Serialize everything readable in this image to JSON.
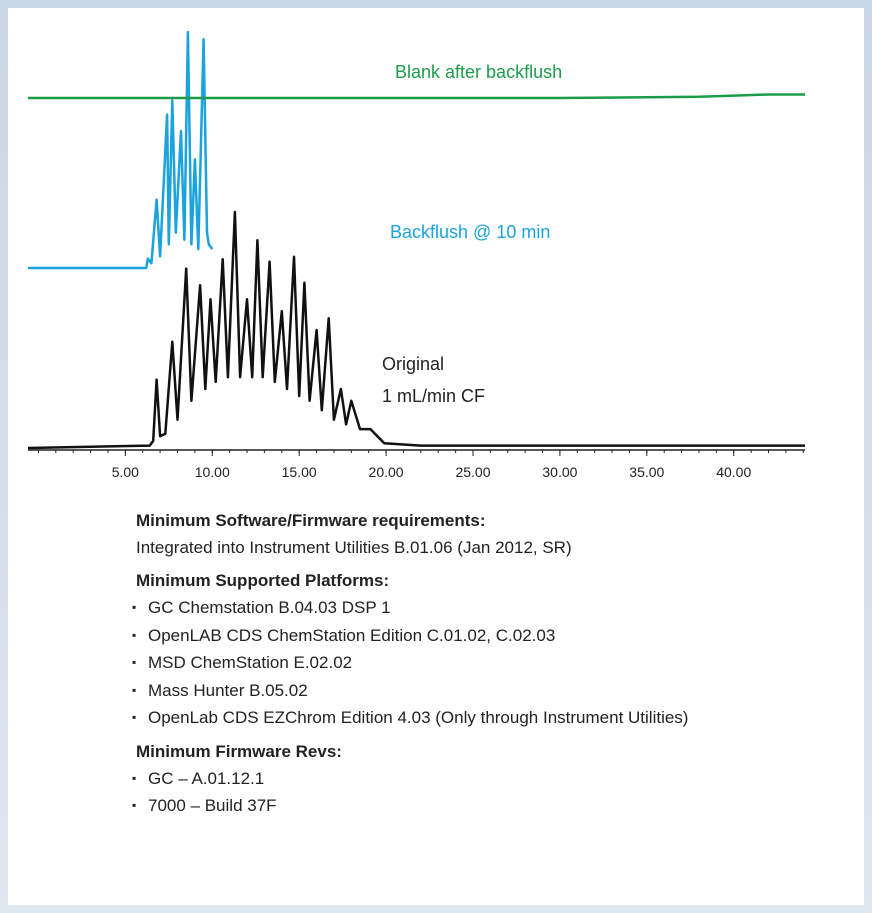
{
  "chart_data": {
    "type": "line",
    "xlim": [
      -0.6,
      44.1
    ],
    "xticks": [
      {
        "value": 5,
        "label": "5.00"
      },
      {
        "value": 10,
        "label": "10.00"
      },
      {
        "value": 15,
        "label": "15.00"
      },
      {
        "value": 20,
        "label": "20.00"
      },
      {
        "value": 25,
        "label": "25.00"
      },
      {
        "value": 30,
        "label": "30.00"
      },
      {
        "value": 35,
        "label": "35.00"
      },
      {
        "value": 40,
        "label": "40.00"
      }
    ],
    "xminorticks": [
      0,
      1,
      2,
      3,
      4,
      5,
      6,
      7,
      8,
      9,
      10,
      11,
      12,
      13,
      14,
      15,
      16,
      17,
      18,
      19,
      20,
      21,
      22,
      23,
      24,
      25,
      26,
      27,
      28,
      29,
      30,
      31,
      32,
      33,
      34,
      35,
      36,
      37,
      38,
      39,
      40,
      41,
      42,
      43,
      44
    ],
    "series": [
      {
        "name": "Blank after backflush",
        "color": "#1a9c4a",
        "x": [
          -0.6,
          10,
          20,
          30,
          38,
          40,
          42,
          44.1
        ],
        "values": [
          0,
          0,
          0,
          0,
          0.5,
          1,
          1.5,
          1.5
        ]
      },
      {
        "name": "Backflush @ 10 min",
        "color": "#1aa3dc",
        "x": [
          -0.6,
          6.2,
          6.3,
          6.5,
          6.8,
          7.0,
          7.4,
          7.5,
          7.7,
          7.9,
          8.2,
          8.4,
          8.6,
          8.8,
          9.0,
          9.2,
          9.5,
          9.7,
          9.8,
          10.0
        ],
        "values": [
          0,
          0,
          4,
          2,
          29,
          5,
          65,
          10,
          71,
          15,
          58,
          12,
          100,
          10,
          46,
          8,
          97,
          15,
          10,
          8
        ]
      },
      {
        "name": "Original",
        "name_line2": "1 mL/min CF",
        "color": "#111111",
        "x": [
          -0.6,
          6.4,
          6.6,
          6.8,
          7.0,
          7.3,
          7.7,
          8.0,
          8.5,
          8.8,
          9.3,
          9.6,
          9.9,
          10.2,
          10.6,
          10.9,
          11.3,
          11.6,
          12.0,
          12.3,
          12.6,
          12.9,
          13.3,
          13.6,
          14.0,
          14.3,
          14.7,
          15.0,
          15.3,
          15.6,
          16.0,
          16.3,
          16.7,
          17.0,
          17.4,
          17.7,
          18.0,
          18.5,
          19.1,
          19.9,
          22,
          30,
          44.1
        ],
        "values": [
          0,
          1,
          3,
          29,
          5,
          6,
          45,
          12,
          76,
          20,
          69,
          25,
          63,
          28,
          80,
          30,
          100,
          30,
          63,
          30,
          88,
          30,
          79,
          28,
          58,
          25,
          81,
          22,
          70,
          20,
          50,
          16,
          55,
          12,
          25,
          10,
          20,
          8,
          8,
          2,
          1,
          1,
          1
        ]
      }
    ]
  },
  "sections": [
    {
      "heading": "Minimum Software/Firmware requirements:",
      "text": "Integrated into Instrument Utilities B.01.06 (Jan 2012, SR)"
    },
    {
      "heading": "Minimum Supported Platforms:",
      "items": [
        "GC Chemstation B.04.03 DSP 1",
        "OpenLAB CDS ChemStation Edition C.01.02, C.02.03",
        "MSD ChemStation E.02.02",
        "Mass Hunter B.05.02",
        "OpenLab CDS EZChrom Edition 4.03 (Only through Instrument Utilities)"
      ]
    },
    {
      "heading": "Minimum Firmware Revs:",
      "items": [
        "GC – A.01.12.1",
        "7000 – Build 37F"
      ]
    }
  ]
}
